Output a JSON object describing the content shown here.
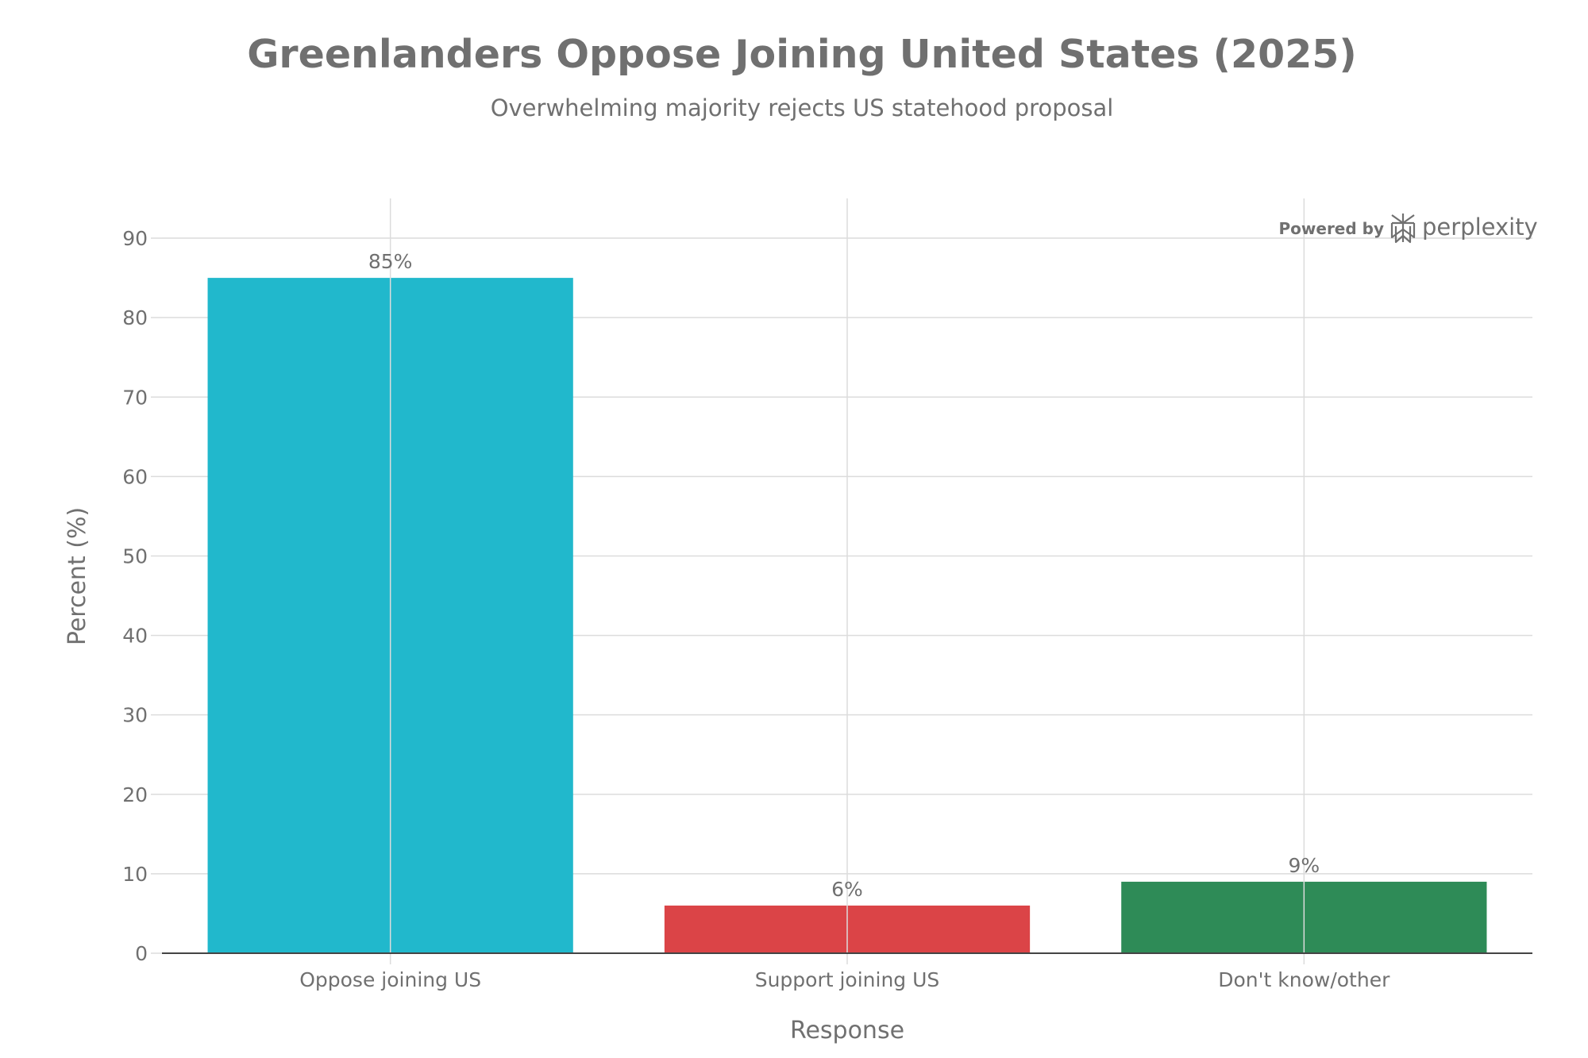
{
  "chart_data": {
    "type": "bar",
    "title": "Greenlanders Oppose Joining United States (2025)",
    "subtitle": "Overwhelming majority rejects US statehood proposal",
    "xlabel": "Response",
    "ylabel": "Percent (%)",
    "categories": [
      "Oppose joining US",
      "Support joining US",
      "Don't know/other"
    ],
    "values": [
      85,
      6,
      9
    ],
    "data_labels": [
      "85%",
      "6%",
      "9%"
    ],
    "colors": [
      "#21B8CC",
      "#DB4447",
      "#2E8B57"
    ],
    "ylim": [
      0,
      95
    ],
    "yticks": [
      0,
      10,
      20,
      30,
      40,
      50,
      60,
      70,
      80,
      90
    ],
    "grid": true
  },
  "branding": {
    "powered_by": "Powered by",
    "name": "perplexity",
    "icon": "perplexity-logo-icon"
  }
}
